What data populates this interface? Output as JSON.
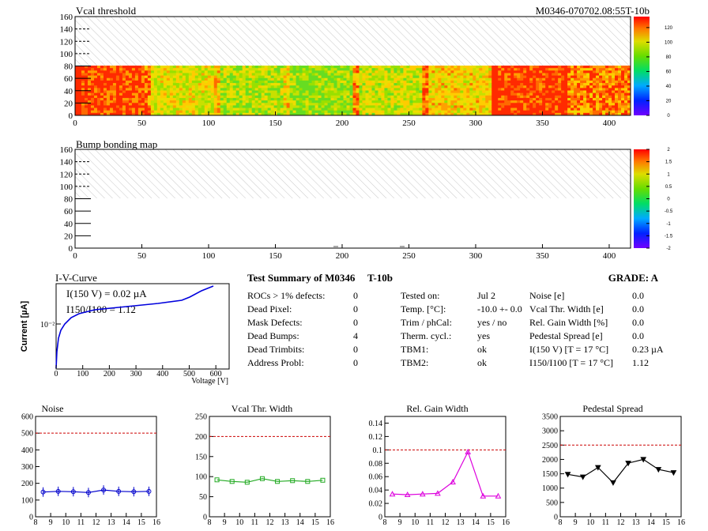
{
  "header": {
    "module_id": "M0346-070702.08:55T-10b"
  },
  "vcal_map": {
    "title": "Vcal threshold",
    "xticks": [
      "0",
      "50",
      "100",
      "150",
      "200",
      "250",
      "300",
      "350",
      "400"
    ],
    "yticks": [
      "0",
      "20",
      "40",
      "60",
      "80",
      "100",
      "120",
      "140",
      "160"
    ],
    "palette_ticks": [
      "0",
      "20",
      "40",
      "60",
      "80",
      "100",
      "120"
    ]
  },
  "bump_map": {
    "title": "Bump bonding map",
    "xticks": [
      "0",
      "50",
      "100",
      "150",
      "200",
      "250",
      "300",
      "350",
      "400"
    ],
    "yticks": [
      "0",
      "20",
      "40",
      "60",
      "80",
      "100",
      "120",
      "140",
      "160"
    ],
    "palette_ticks": [
      "-2",
      "-1.5",
      "-1",
      "-0.5",
      "0",
      "0.5",
      "1",
      "1.5",
      "2"
    ]
  },
  "iv": {
    "title": "I-V-Curve",
    "ylabel": "Current [µA]",
    "xlabel": "Voltage [V]",
    "annot1": "I(150 V) = 0.02 µA",
    "annot2": "I150/I100 = 1.12",
    "ytick": "10⁻²",
    "xticks": [
      "0",
      "100",
      "200",
      "300",
      "400",
      "500",
      "600"
    ]
  },
  "summary": {
    "heading": "Test Summary of M0346",
    "suffix": "T-10b",
    "grade": "GRADE:  A",
    "left": [
      {
        "label": "ROCs > 1% defects:",
        "value": "0"
      },
      {
        "label": "Dead Pixel:",
        "value": "0"
      },
      {
        "label": "Mask Defects:",
        "value": "0"
      },
      {
        "label": "Dead Bumps:",
        "value": "4"
      },
      {
        "label": "Dead Trimbits:",
        "value": "0"
      },
      {
        "label": "Address Probl:",
        "value": "0"
      }
    ],
    "middle": [
      {
        "label": "Tested on:",
        "value": "Jul 2"
      },
      {
        "label": "Temp. [°C]:",
        "value": "-10.0 +- 0.0"
      },
      {
        "label": "Trim / phCal:",
        "value": "yes / no"
      },
      {
        "label": "Therm. cycl.:",
        "value": "yes"
      },
      {
        "label": "TBM1:",
        "value": "ok"
      },
      {
        "label": "TBM2:",
        "value": "ok"
      }
    ],
    "right": [
      {
        "label": "Noise [e]",
        "value": "0.0"
      },
      {
        "label": "Vcal Thr. Width [e]",
        "value": "0.0"
      },
      {
        "label": "Rel. Gain Width [%]",
        "value": "0.0"
      },
      {
        "label": "Pedestal Spread [e]",
        "value": "0.0"
      },
      {
        "label": "I(150 V) [T = 17 °C]",
        "value": "0.23 µA"
      },
      {
        "label": "I150/I100  [T = 17 °C]",
        "value": "1.12"
      }
    ]
  },
  "chart_data": [
    {
      "type": "line",
      "title": "Noise",
      "x": [
        8.5,
        9.5,
        10.5,
        11.5,
        12.5,
        13.5,
        14.5,
        15.5
      ],
      "values": [
        148,
        152,
        150,
        145,
        160,
        152,
        150,
        152
      ],
      "ylim": [
        0,
        600
      ],
      "xlim": [
        8,
        16
      ],
      "limit": 500,
      "color": "#0000cc",
      "marker": "circle",
      "yticks": [
        "0",
        "100",
        "200",
        "300",
        "400",
        "500",
        "600"
      ],
      "xticks": [
        "8",
        "9",
        "10",
        "11",
        "12",
        "13",
        "14",
        "15",
        "16"
      ]
    },
    {
      "type": "line",
      "title": "Vcal Thr. Width",
      "x": [
        8.5,
        9.5,
        10.5,
        11.5,
        12.5,
        13.5,
        14.5,
        15.5
      ],
      "values": [
        92,
        88,
        86,
        95,
        88,
        90,
        88,
        91
      ],
      "ylim": [
        0,
        250
      ],
      "xlim": [
        8,
        16
      ],
      "limit": 200,
      "color": "#22aa22",
      "marker": "square",
      "yticks": [
        "0",
        "50",
        "100",
        "150",
        "200",
        "250"
      ],
      "xticks": [
        "8",
        "9",
        "10",
        "11",
        "12",
        "13",
        "14",
        "15",
        "16"
      ]
    },
    {
      "type": "line",
      "title": "Rel. Gain Width",
      "x": [
        8.5,
        9.5,
        10.5,
        11.5,
        12.5,
        13.5,
        14.5,
        15.5
      ],
      "values": [
        0.034,
        0.033,
        0.034,
        0.035,
        0.052,
        0.097,
        0.031,
        0.031
      ],
      "ylim": [
        0,
        0.15
      ],
      "xlim": [
        8,
        16
      ],
      "limit": 0.1,
      "color": "#dd00dd",
      "marker": "triangle",
      "yticks": [
        "0",
        "0.02",
        "0.04",
        "0.06",
        "0.08",
        "0.1",
        "0.12",
        "0.14"
      ],
      "xticks": [
        "8",
        "9",
        "10",
        "11",
        "12",
        "13",
        "14",
        "15",
        "16"
      ]
    },
    {
      "type": "line",
      "title": "Pedestal Spread",
      "x": [
        8.5,
        9.5,
        10.5,
        11.5,
        12.5,
        13.5,
        14.5,
        15.5
      ],
      "values": [
        1480,
        1390,
        1720,
        1190,
        1870,
        2000,
        1650,
        1540
      ],
      "ylim": [
        0,
        3500
      ],
      "xlim": [
        8,
        16
      ],
      "limit": 2500,
      "color": "#000000",
      "marker": "triangle-down",
      "yticks": [
        "0",
        "500",
        "1000",
        "1500",
        "2000",
        "2500",
        "3000",
        "3500"
      ],
      "xticks": [
        "8",
        "9",
        "10",
        "11",
        "12",
        "13",
        "14",
        "15",
        "16"
      ]
    }
  ]
}
